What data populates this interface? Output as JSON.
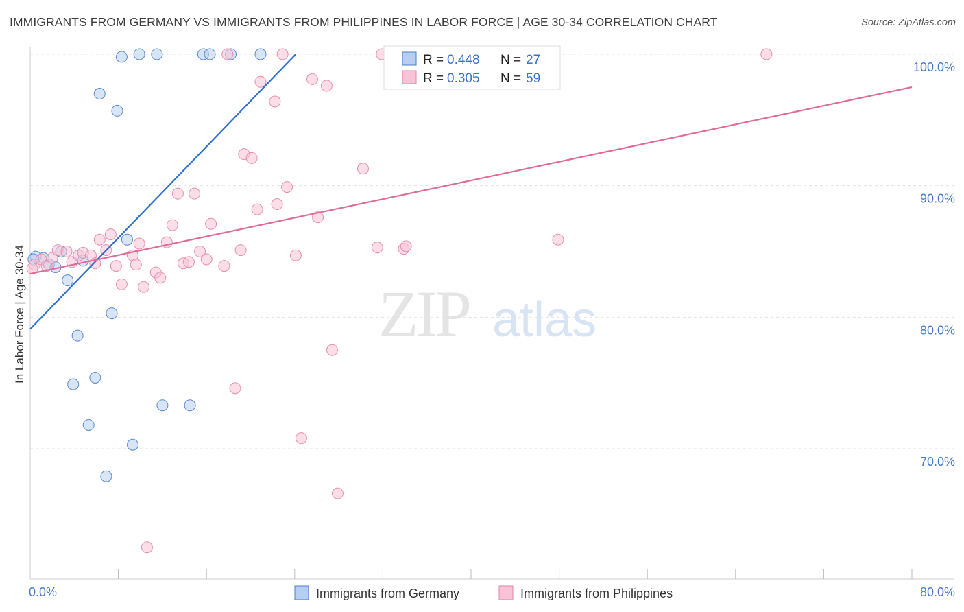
{
  "title": "IMMIGRANTS FROM GERMANY VS IMMIGRANTS FROM PHILIPPINES IN LABOR FORCE | AGE 30-34 CORRELATION CHART",
  "source": "Source: ZipAtlas.com",
  "watermark": {
    "zip": "ZIP",
    "atlas": "atlas"
  },
  "chart_data": {
    "type": "scatter",
    "title": "IMMIGRANTS FROM GERMANY VS IMMIGRANTS FROM PHILIPPINES IN LABOR FORCE | AGE 30-34 CORRELATION CHART",
    "xlabel": "",
    "ylabel": "In Labor Force | Age 30-34",
    "xlim": [
      0,
      80
    ],
    "ylim": [
      60,
      101
    ],
    "x_tick_labels": [
      "0.0%",
      "80.0%"
    ],
    "y_ticks": [
      {
        "value": 70,
        "label": "70.0%"
      },
      {
        "value": 80,
        "label": "80.0%"
      },
      {
        "value": 90,
        "label": "90.0%"
      },
      {
        "value": 100,
        "label": "100.0%"
      }
    ],
    "grid": true,
    "legend": {
      "position": "top-center",
      "entries": [
        {
          "r_label": "R =",
          "r": "0.448",
          "n_label": "N =",
          "n": "27"
        },
        {
          "r_label": "R =",
          "r": "0.305",
          "n_label": "N =",
          "n": "59"
        }
      ]
    },
    "series": [
      {
        "name": "Immigrants from Germany",
        "color": "#4a7ec9",
        "fill": "#b6cff0",
        "trendline": {
          "x": [
            0.0,
            24.1
          ],
          "y": [
            79.1,
            100.0
          ],
          "color": "#2d6fcf"
        },
        "points": [
          [
            0.5,
            84.6
          ],
          [
            1.2,
            84.5
          ],
          [
            1.7,
            84.0
          ],
          [
            2.3,
            83.8
          ],
          [
            2.8,
            85.0
          ],
          [
            3.4,
            82.8
          ],
          [
            4.3,
            78.6
          ],
          [
            4.8,
            84.3
          ],
          [
            3.9,
            74.9
          ],
          [
            5.9,
            75.4
          ],
          [
            5.3,
            71.8
          ],
          [
            6.3,
            97.0
          ],
          [
            6.9,
            67.9
          ],
          [
            7.4,
            80.3
          ],
          [
            7.9,
            95.7
          ],
          [
            8.3,
            99.8
          ],
          [
            8.8,
            85.9
          ],
          [
            9.3,
            70.3
          ],
          [
            9.9,
            100.0
          ],
          [
            11.5,
            100.0
          ],
          [
            12.0,
            73.3
          ],
          [
            14.5,
            73.3
          ],
          [
            15.7,
            100.0
          ],
          [
            16.3,
            100.0
          ],
          [
            18.2,
            100.0
          ],
          [
            20.9,
            100.0
          ],
          [
            0.3,
            84.4
          ]
        ]
      },
      {
        "name": "Immigrants from Philippines",
        "color": "#e583a8",
        "fill": "#f8c3d6",
        "trendline": {
          "x": [
            0.0,
            80.0
          ],
          "y": [
            83.3,
            97.5
          ],
          "color": "#e06b98"
        },
        "points": [
          [
            0.4,
            84.0
          ],
          [
            1.0,
            84.4
          ],
          [
            1.5,
            83.9
          ],
          [
            2.0,
            84.5
          ],
          [
            2.5,
            85.1
          ],
          [
            3.3,
            85.0
          ],
          [
            3.8,
            84.2
          ],
          [
            4.4,
            84.7
          ],
          [
            4.8,
            84.9
          ],
          [
            5.5,
            84.7
          ],
          [
            5.9,
            84.1
          ],
          [
            6.3,
            85.9
          ],
          [
            6.9,
            85.1
          ],
          [
            7.3,
            86.3
          ],
          [
            7.8,
            83.9
          ],
          [
            8.3,
            82.5
          ],
          [
            9.3,
            84.7
          ],
          [
            9.6,
            84.0
          ],
          [
            9.9,
            85.6
          ],
          [
            10.3,
            82.3
          ],
          [
            11.4,
            83.4
          ],
          [
            11.8,
            83.0
          ],
          [
            12.4,
            85.7
          ],
          [
            12.9,
            87.0
          ],
          [
            13.4,
            89.4
          ],
          [
            13.9,
            84.1
          ],
          [
            14.4,
            84.2
          ],
          [
            14.9,
            89.4
          ],
          [
            15.4,
            85.0
          ],
          [
            16.0,
            84.4
          ],
          [
            16.4,
            87.1
          ],
          [
            17.6,
            83.9
          ],
          [
            17.9,
            100.0
          ],
          [
            18.6,
            74.6
          ],
          [
            19.1,
            85.1
          ],
          [
            19.4,
            92.4
          ],
          [
            20.1,
            92.1
          ],
          [
            20.6,
            88.2
          ],
          [
            20.9,
            97.9
          ],
          [
            22.2,
            96.4
          ],
          [
            22.4,
            88.6
          ],
          [
            22.9,
            100.0
          ],
          [
            23.3,
            89.9
          ],
          [
            24.1,
            84.7
          ],
          [
            24.6,
            70.8
          ],
          [
            25.6,
            98.1
          ],
          [
            26.1,
            87.6
          ],
          [
            26.9,
            97.6
          ],
          [
            27.4,
            77.5
          ],
          [
            27.9,
            66.6
          ],
          [
            30.2,
            91.3
          ],
          [
            31.5,
            85.3
          ],
          [
            31.9,
            100.0
          ],
          [
            33.9,
            85.2
          ],
          [
            34.1,
            85.4
          ],
          [
            47.9,
            85.9
          ],
          [
            66.8,
            100.0
          ],
          [
            10.6,
            62.5
          ],
          [
            0.2,
            83.7
          ]
        ]
      }
    ]
  }
}
